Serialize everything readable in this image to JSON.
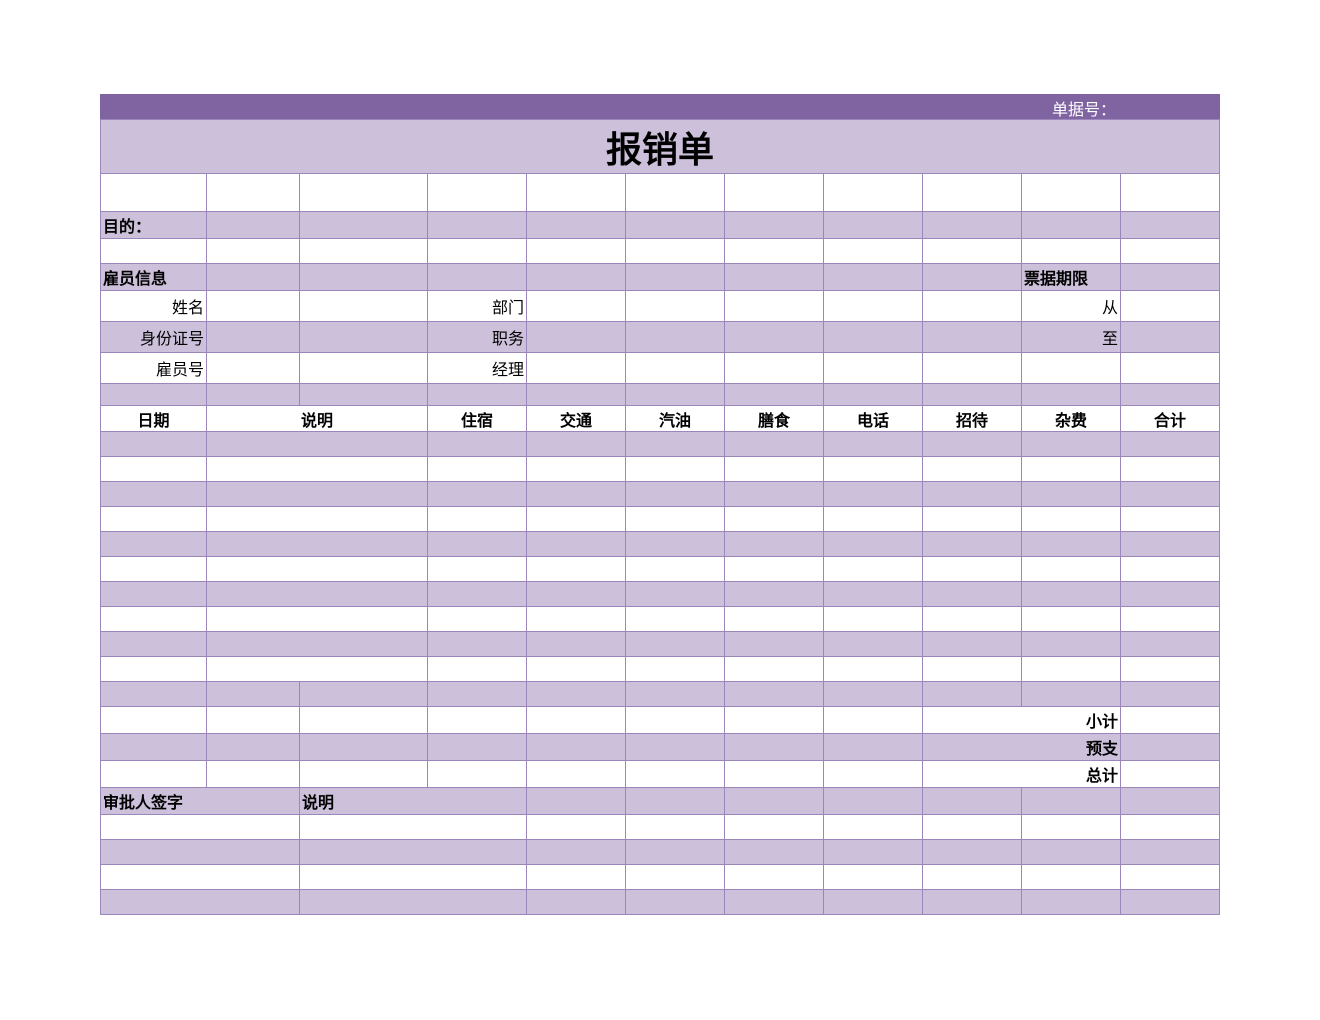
{
  "header": {
    "doc_no_label": "单据号：",
    "title": "报销单"
  },
  "form": {
    "purpose_label": "目的：",
    "employee_section": "雇员信息",
    "period_section": "票据期限",
    "employee_fields": [
      "姓名",
      "身份证号",
      "雇员号"
    ],
    "job_fields": [
      "部门",
      "职务",
      "经理"
    ],
    "period_fields": [
      "从",
      "至"
    ]
  },
  "table": {
    "columns": [
      "日期",
      "说明",
      "住宿",
      "交通",
      "汽油",
      "膳食",
      "电话",
      "招待",
      "杂费",
      "合计"
    ]
  },
  "summary": [
    "小计",
    "预支",
    "总计"
  ],
  "approval": {
    "signature_label": "审批人签字",
    "note_label": "说明"
  }
}
